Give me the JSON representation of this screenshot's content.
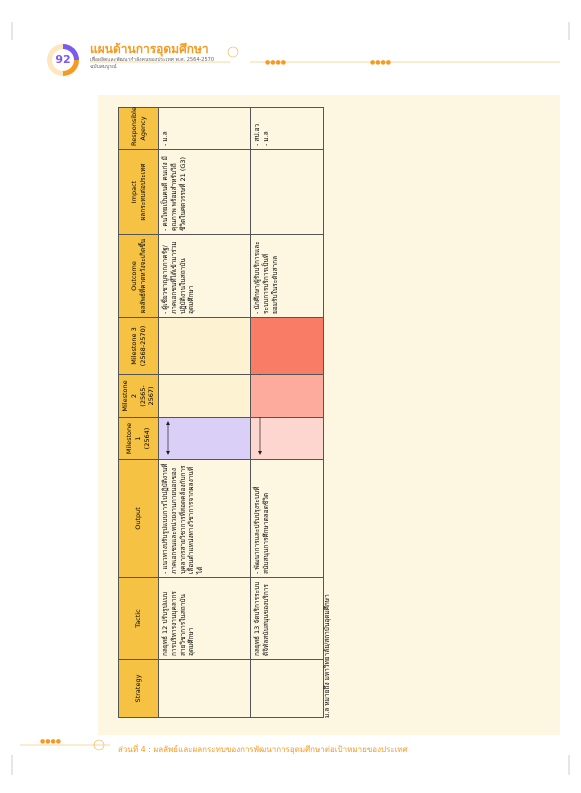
{
  "header": {
    "page_number": "92",
    "title": "แผนด้านการอุดมศึกษา",
    "subtitle": [
      "เพื่อผลิตและพัฒนากำลังคนของประเทศ พ.ศ. 2564-2570",
      "ฉบับสมบูรณ์"
    ]
  },
  "table": {
    "headers": [
      "Strategy",
      "Tactic",
      "Output",
      "Milestone 1\n(2564)",
      "Milestone 2\n(2565-2567)",
      "Milestone 3\n(2568-2570)",
      "Outcome\nผลลัพธ์ที่คาดหวังจะเกิดขึ้น",
      "Impact\nผลกระทบต่อประเทศ",
      "Responsible\nAgency"
    ],
    "rows": [
      [
        null,
        "กลยุทธ์ 12 ปรับรูปแบบการบริหารงานบุคลากรสายวิชาการในสถาบันอุดมศึกษา",
        "- แนวทางปรับรูปแบบการไปปฏิบัติงานที่ภาคเอกชนและหน่วยงานภายนอกของบุคลากรสายวิชาการที่สอดคล้องกับการเลื่อนตำแหน่งทางวิชาการจากผลงานที่ได้",
        null,
        null,
        null,
        "- ผู้เชี่ยวชาญจากภาครัฐ/ภาคเอกชนที่ได้เข้ามาร่วมปฏิบัติงานในสถาบันอุดมศึกษา",
        "- คนไทยเป็นคนดี คนเก่ง มีคุณภาพ พร้อมสำหรับวิถีชีวิตในศตวรรษที่ 21 (G3)",
        "- ม.ล"
      ],
      [
        null,
        "กลยุทธ์ 13 จัดบริการระบบดิจิทัลสนับสนุนของบริการ",
        "- พัฒนาการและปรับปรุงระบบที่สนับสนุนการศึกษาตลอดชีวิต",
        null,
        null,
        null,
        "- นักศึกษา/ผู้รับบริการและระบบการบริการเป็นที่ยอมรับในระดับสากล",
        null,
        "- สป.อว\n- ม.ล"
      ]
    ]
  },
  "note": "ม.ล หมายถึง มหาวิทยาลัย/สถาบันอุดมศึกษา",
  "footer": "ส่วนที่ 4 : ผลลัพธ์และผลกระทบของการพัฒนาการอุดมศึกษาต่อเป้าหมายของประเทศ"
}
